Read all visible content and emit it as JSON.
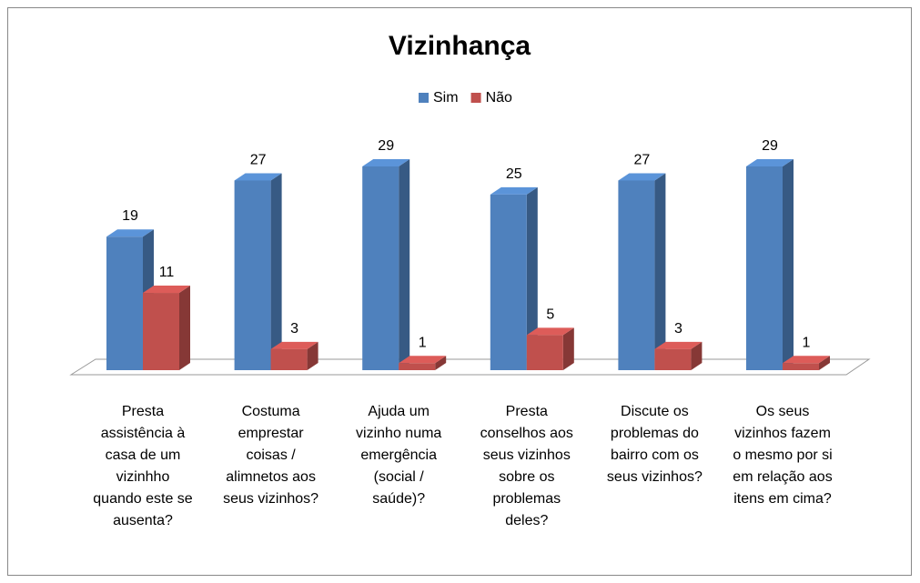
{
  "chart_data": {
    "type": "bar3d",
    "title": "Vizinhança",
    "categories": [
      "Presta assistência à casa de um vizinhho quando este se ausenta?",
      "Costuma emprestar coisas / alimnetos aos seus vizinhos?",
      "Ajuda um vizinho numa emergência (social / saúde)?",
      "Presta conselhos aos seus vizinhos sobre os problemas deles?",
      "Discute os problemas do bairro com os seus vizinhos?",
      "Os seus vizinhos fazem o mesmo por si em relação aos itens em cima?"
    ],
    "series": [
      {
        "name": "Sim",
        "color": "#4f81bd",
        "values": [
          19,
          27,
          29,
          25,
          27,
          29
        ]
      },
      {
        "name": "Não",
        "color": "#c0504d",
        "values": [
          11,
          3,
          1,
          5,
          3,
          1
        ]
      }
    ],
    "legend": "top"
  }
}
